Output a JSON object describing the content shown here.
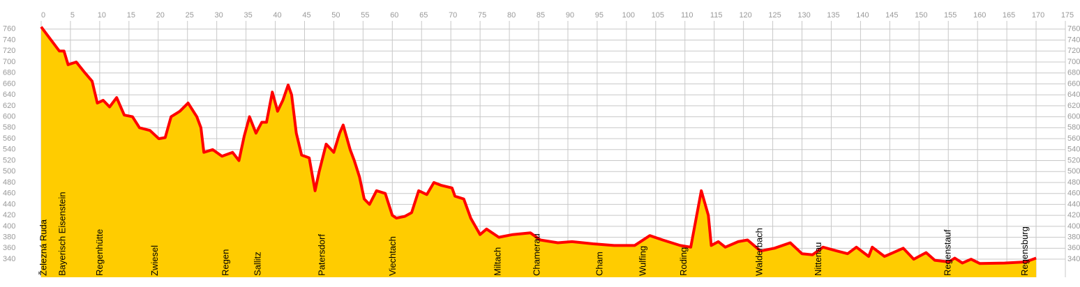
{
  "chart_data": {
    "type": "area",
    "x": [
      0,
      3.1,
      3.9,
      4.6,
      6,
      7.5,
      8.7,
      9.6,
      10.6,
      11.7,
      12.9,
      14.2,
      15.6,
      16.8,
      18.6,
      20.1,
      21.2,
      22.2,
      23.7,
      25.1,
      26.6,
      27.3,
      27.8,
      29.3,
      30.9,
      32.7,
      33.8,
      34.7,
      35.6,
      36.7,
      37.7,
      38.5,
      39.5,
      40.4,
      41.3,
      42.2,
      42.8,
      43.6,
      44.5,
      45.8,
      46.8,
      47.5,
      48.7,
      50,
      51,
      51.6,
      52.8,
      53.5,
      54.4,
      55.2,
      56.1,
      57.3,
      58.8,
      60,
      60.7,
      62.1,
      63.3,
      64.5,
      65.9,
      67.1,
      68.3,
      70.2,
      70.7,
      72.2,
      73.4,
      75,
      76.1,
      78.2,
      80.6,
      83.6,
      85.3,
      88.3,
      90.7,
      94.3,
      97.9,
      101.4,
      104,
      106.2,
      109.2,
      111,
      112.8,
      114,
      114.5,
      115.7,
      116.9,
      119.1,
      120.7,
      122.9,
      125.3,
      128,
      130,
      131.8,
      133.6,
      136,
      137.8,
      139.3,
      141.4,
      142,
      144.1,
      147.3,
      149.1,
      151.2,
      152.7,
      155.1,
      156.1,
      157.4,
      158.9,
      160.4,
      164.6,
      168.2,
      170
    ],
    "values": [
      764,
      720,
      720,
      695,
      700,
      680,
      665,
      625,
      630,
      618,
      635,
      603,
      600,
      580,
      575,
      560,
      562,
      600,
      610,
      625,
      600,
      580,
      535,
      540,
      528,
      535,
      520,
      565,
      600,
      570,
      590,
      590,
      645,
      610,
      630,
      658,
      640,
      570,
      530,
      525,
      465,
      500,
      550,
      535,
      570,
      585,
      540,
      520,
      490,
      450,
      440,
      465,
      460,
      420,
      415,
      418,
      425,
      465,
      458,
      480,
      475,
      470,
      455,
      450,
      415,
      385,
      395,
      380,
      385,
      388,
      375,
      370,
      372,
      368,
      365,
      365,
      383,
      375,
      365,
      362,
      465,
      420,
      365,
      372,
      362,
      372,
      375,
      355,
      360,
      370,
      350,
      348,
      362,
      355,
      350,
      362,
      345,
      362,
      345,
      360,
      340,
      352,
      338,
      335,
      342,
      333,
      340,
      332,
      333,
      335,
      342
    ],
    "line_color": "#ff0000",
    "fill_color": "#ffcc00",
    "xlim": [
      0,
      175
    ],
    "xticks": [
      0,
      5,
      10,
      15,
      20,
      25,
      30,
      35,
      40,
      45,
      50,
      55,
      60,
      65,
      70,
      75,
      80,
      85,
      90,
      95,
      100,
      105,
      110,
      115,
      120,
      125,
      130,
      135,
      140,
      145,
      150,
      155,
      160,
      165,
      170,
      175
    ],
    "ylim": [
      307,
      775
    ],
    "yticks": [
      340,
      360,
      380,
      400,
      420,
      440,
      460,
      480,
      500,
      520,
      540,
      560,
      580,
      600,
      620,
      640,
      660,
      680,
      700,
      720,
      740,
      760
    ],
    "grid": true,
    "places": [
      {
        "name": "Železná Ruda",
        "km": 0
      },
      {
        "name": "Bayerisch Eisenstein",
        "km": 3.2
      },
      {
        "name": "Regenhütte",
        "km": 9.6
      },
      {
        "name": "Zwiesel",
        "km": 19
      },
      {
        "name": "Regen",
        "km": 31.1
      },
      {
        "name": "Sallitz",
        "km": 36.6
      },
      {
        "name": "Patersdorf",
        "km": 47.6
      },
      {
        "name": "Viechtach",
        "km": 59.7
      },
      {
        "name": "Miltach",
        "km": 77.6
      },
      {
        "name": "Chamerau",
        "km": 84.3
      },
      {
        "name": "Cham",
        "km": 95
      },
      {
        "name": "Wulfing",
        "km": 102.4
      },
      {
        "name": "Roding",
        "km": 109.4
      },
      {
        "name": "Walderbach",
        "km": 122.3
      },
      {
        "name": "Nittenau",
        "km": 132.4
      },
      {
        "name": "Regenstauf",
        "km": 154.5
      },
      {
        "name": "Regensburg",
        "km": 167.7
      }
    ]
  }
}
